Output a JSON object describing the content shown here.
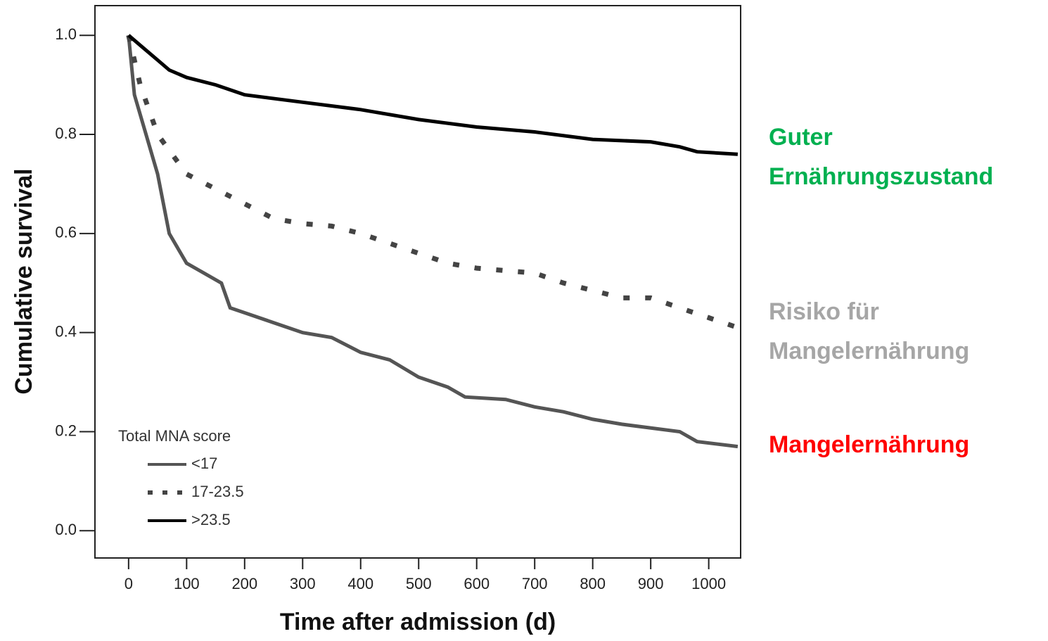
{
  "chart_data": {
    "type": "line",
    "xlabel": "Time after admission (d)",
    "ylabel": "Cumulative survival",
    "xlim": [
      -58,
      1055
    ],
    "ylim": [
      -0.055,
      1.06
    ],
    "xticks": [
      0,
      100,
      200,
      300,
      400,
      500,
      600,
      700,
      800,
      900,
      1000
    ],
    "yticks": [
      {
        "value": 0,
        "label": "0.0"
      },
      0.2,
      0.4,
      0.6,
      0.8,
      {
        "value": 1,
        "label": "1.0"
      }
    ],
    "legend_title": "Total MNA score",
    "legend_position": "lower left",
    "series": [
      {
        "name": "<17",
        "color": "#555555",
        "style": "solid",
        "x": [
          0,
          10,
          30,
          50,
          70,
          100,
          130,
          160,
          175,
          200,
          250,
          300,
          350,
          400,
          450,
          500,
          550,
          580,
          650,
          700,
          750,
          800,
          850,
          950,
          980,
          1050
        ],
        "values": [
          1.0,
          0.88,
          0.8,
          0.72,
          0.6,
          0.54,
          0.52,
          0.5,
          0.45,
          0.44,
          0.42,
          0.4,
          0.39,
          0.36,
          0.345,
          0.31,
          0.29,
          0.27,
          0.265,
          0.25,
          0.24,
          0.225,
          0.215,
          0.2,
          0.18,
          0.17
        ]
      },
      {
        "name": "17-23.5",
        "color": "#444444",
        "style": "dashed",
        "x": [
          0,
          20,
          50,
          100,
          150,
          200,
          250,
          300,
          350,
          400,
          450,
          500,
          550,
          600,
          700,
          750,
          800,
          850,
          900,
          950,
          1000,
          1050
        ],
        "values": [
          1.0,
          0.9,
          0.8,
          0.72,
          0.69,
          0.66,
          0.63,
          0.62,
          0.615,
          0.6,
          0.58,
          0.56,
          0.54,
          0.53,
          0.52,
          0.5,
          0.485,
          0.47,
          0.47,
          0.45,
          0.43,
          0.41
        ]
      },
      {
        "name": ">23.5",
        "color": "#000000",
        "style": "solid",
        "x": [
          0,
          20,
          50,
          70,
          100,
          150,
          200,
          300,
          400,
          500,
          600,
          700,
          800,
          900,
          950,
          980,
          1050
        ],
        "values": [
          1.0,
          0.98,
          0.95,
          0.93,
          0.915,
          0.9,
          0.88,
          0.865,
          0.85,
          0.83,
          0.815,
          0.805,
          0.79,
          0.785,
          0.775,
          0.765,
          0.76
        ]
      }
    ],
    "annotations": [
      {
        "lines": [
          "Guter",
          "Ernährungszustand"
        ],
        "color": "#00b050"
      },
      {
        "lines": [
          "Risiko für",
          "Mangelernährung"
        ],
        "color": "#a6a6a6"
      },
      {
        "lines": [
          "Mangelernährung"
        ],
        "color": "#ff0000"
      }
    ]
  }
}
